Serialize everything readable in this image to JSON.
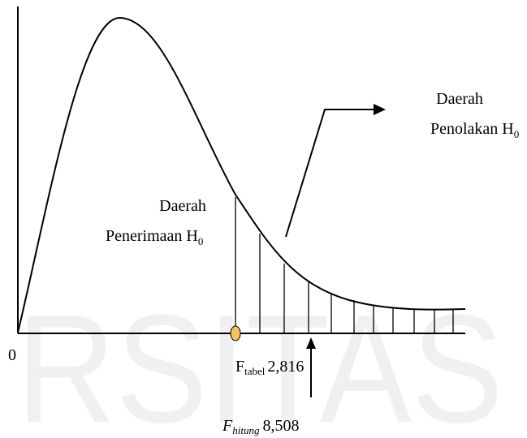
{
  "watermark": "RSITAS",
  "rejection": {
    "line1": "Daerah",
    "line2": "Penolakan H",
    "sub": "0"
  },
  "acceptance": {
    "line1": "Daerah",
    "line2": "Penerimaan H",
    "sub": "0"
  },
  "origin": "0",
  "f_table": {
    "symbol": "F",
    "sub": "tabel",
    "value": "2,816"
  },
  "f_count": {
    "symbol": "F",
    "sub": "hitung",
    "value": "8,508"
  }
}
